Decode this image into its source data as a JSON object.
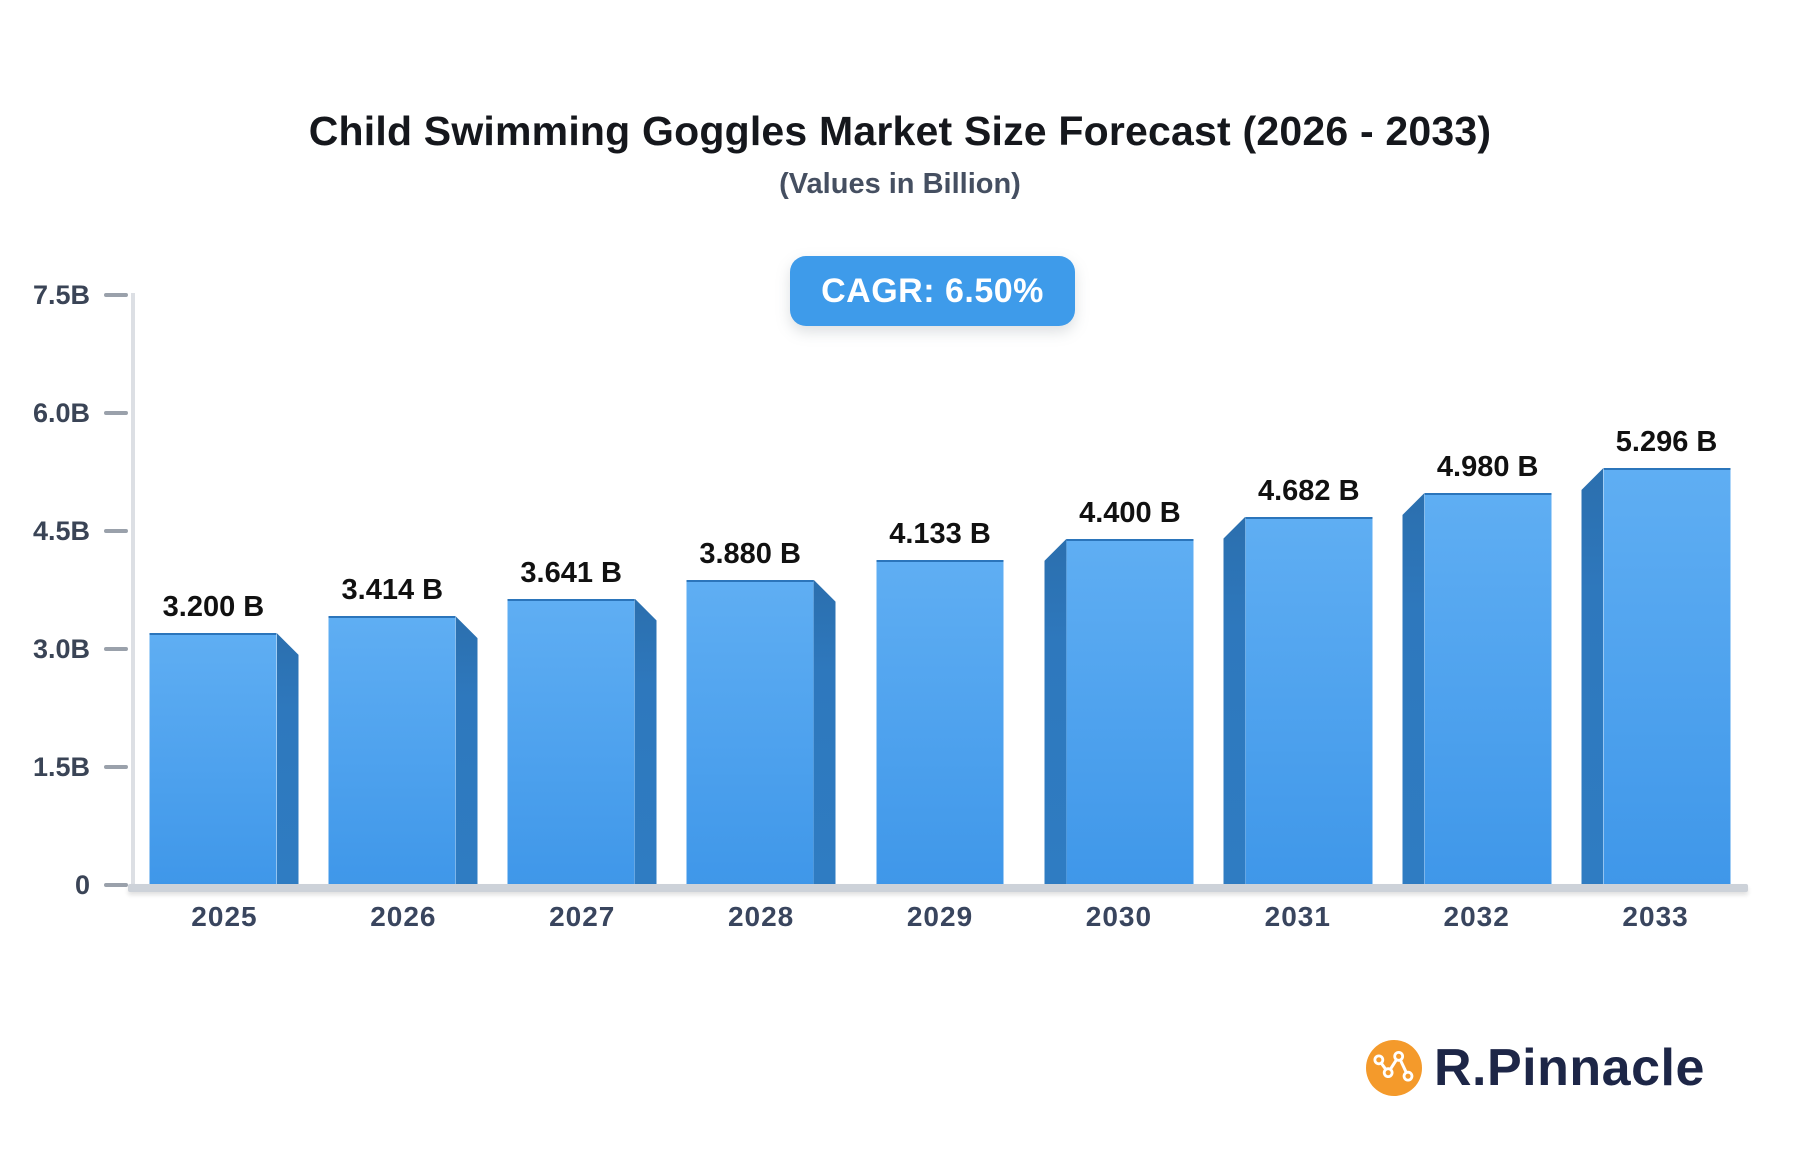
{
  "header": {
    "title": "Child Swimming Goggles Market Size Forecast (2026 - 2033)",
    "subtitle": "(Values in Billion)",
    "cagr_badge": "CAGR: 6.50%"
  },
  "chart_data": {
    "type": "bar",
    "title": "Child Swimming Goggles Market Size Forecast (2026 - 2033)",
    "subtitle": "(Values in Billion)",
    "cagr": "6.50%",
    "unit": "Billion",
    "categories": [
      "2025",
      "2026",
      "2027",
      "2028",
      "2029",
      "2030",
      "2031",
      "2032",
      "2033"
    ],
    "values": [
      3.2,
      3.414,
      3.641,
      3.88,
      4.133,
      4.4,
      4.682,
      4.98,
      5.296
    ],
    "value_labels": [
      "3.200 B",
      "3.414 B",
      "3.641 B",
      "3.880 B",
      "4.133 B",
      "4.400 B",
      "4.682 B",
      "4.980 B",
      "5.296 B"
    ],
    "xlabel": "",
    "ylabel": "",
    "ylim": [
      0,
      7.5
    ],
    "yticks": [
      {
        "value": 7.5,
        "label": "7.5B"
      },
      {
        "value": 6.0,
        "label": "6.0B"
      },
      {
        "value": 4.5,
        "label": "4.5B"
      },
      {
        "value": 3.0,
        "label": "3.0B"
      },
      {
        "value": 1.5,
        "label": "1.5B"
      },
      {
        "value": 0,
        "label": "0"
      }
    ],
    "grid": false,
    "legend": false,
    "bar_style": "3d-perspective-from-center",
    "colors": {
      "bar-face-top": "#5FAEF3",
      "bar-face-bottom": "#3F97E9",
      "bar-side": "#2E78BD",
      "axis-line": "#DCDFE4",
      "baseline": "#CDD2D9",
      "tick": "#9AA1AB",
      "tick-label": "#3A4456",
      "x-label": "#39455E",
      "value-label": "#111111",
      "badge-bg": "#3E9BEA",
      "badge-text": "#FFFFFF",
      "logo-text-color": "#1D2647",
      "logo-circle-color": "#F49A2B"
    }
  },
  "branding": {
    "logo_text": "R.Pinnacle"
  }
}
